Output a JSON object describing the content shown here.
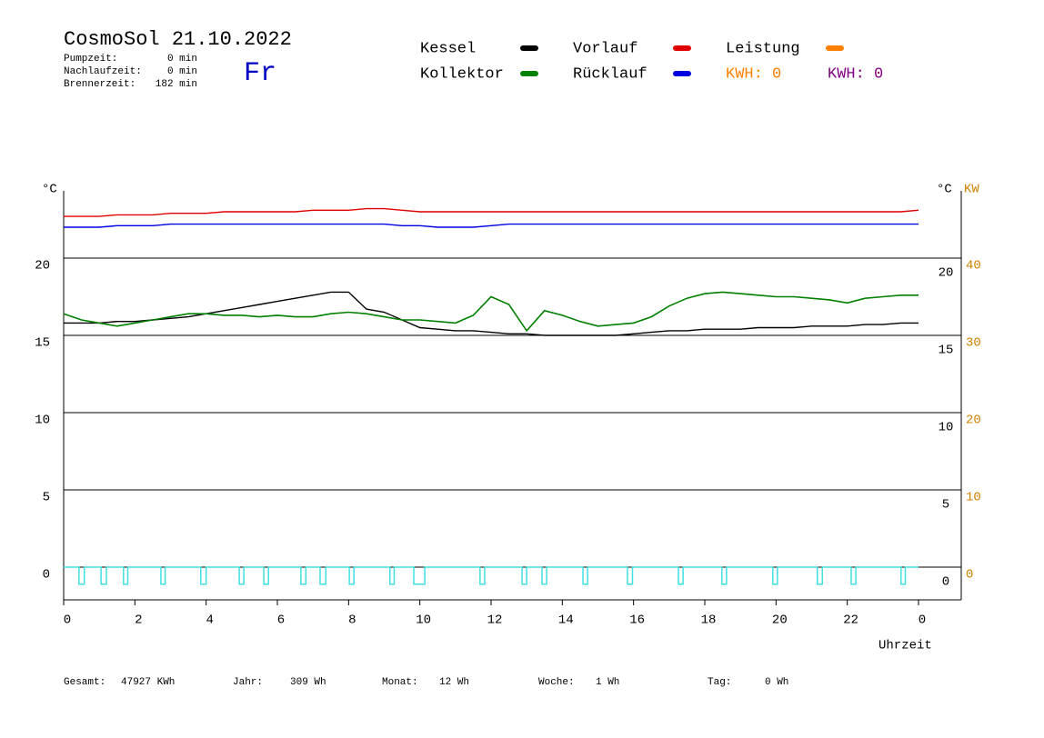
{
  "chart_data": {
    "type": "line",
    "title": "CosmoSol 21.10.2022",
    "day": "Fr",
    "stats": [
      {
        "label": "Pumpzeit:",
        "value": "0 min"
      },
      {
        "label": "Nachlaufzeit:",
        "value": "0 min"
      },
      {
        "label": "Brennerzeit:",
        "value": "182 min"
      }
    ],
    "x": [
      0,
      0.5,
      1,
      1.5,
      2,
      2.5,
      3,
      3.5,
      4,
      4.5,
      5,
      5.5,
      6,
      6.5,
      7,
      7.5,
      8,
      8.5,
      9,
      9.5,
      10,
      10.5,
      11,
      11.5,
      12,
      12.5,
      13,
      13.5,
      14,
      14.5,
      15,
      15.5,
      16,
      16.5,
      17,
      17.5,
      18,
      18.5,
      19,
      19.5,
      20,
      20.5,
      21,
      21.5,
      22,
      22.5,
      23,
      23.5,
      24
    ],
    "series": [
      {
        "name": "Kessel",
        "color": "#000000",
        "values": [
          15.8,
          15.8,
          15.8,
          15.9,
          15.9,
          16.0,
          16.1,
          16.2,
          16.4,
          16.6,
          16.8,
          17.0,
          17.2,
          17.4,
          17.6,
          17.8,
          17.8,
          16.7,
          16.5,
          16.0,
          15.5,
          15.4,
          15.3,
          15.3,
          15.2,
          15.1,
          15.1,
          15.0,
          15.0,
          15.0,
          15.0,
          15.0,
          15.1,
          15.2,
          15.3,
          15.3,
          15.4,
          15.4,
          15.4,
          15.5,
          15.5,
          15.5,
          15.6,
          15.6,
          15.6,
          15.7,
          15.7,
          15.8,
          15.8
        ]
      },
      {
        "name": "Kollektor",
        "color": "#008000",
        "values": [
          16.4,
          16.0,
          15.8,
          15.6,
          15.8,
          16.0,
          16.2,
          16.4,
          16.4,
          16.3,
          16.3,
          16.2,
          16.3,
          16.2,
          16.2,
          16.4,
          16.5,
          16.4,
          16.2,
          16.0,
          16.0,
          15.9,
          15.8,
          16.3,
          17.5,
          17.0,
          15.3,
          16.6,
          16.3,
          15.9,
          15.6,
          15.7,
          15.8,
          16.2,
          16.9,
          17.4,
          17.7,
          17.8,
          17.7,
          17.6,
          17.5,
          17.5,
          17.4,
          17.3,
          17.1,
          17.4,
          17.5,
          17.6,
          17.6
        ]
      },
      {
        "name": "Vorlauf",
        "color": "#e00000",
        "values": [
          22.7,
          22.7,
          22.7,
          22.8,
          22.8,
          22.8,
          22.9,
          22.9,
          22.9,
          23.0,
          23.0,
          23.0,
          23.0,
          23.0,
          23.1,
          23.1,
          23.1,
          23.2,
          23.2,
          23.1,
          23.0,
          23.0,
          23.0,
          23.0,
          23.0,
          23.0,
          23.0,
          23.0,
          23.0,
          23.0,
          23.0,
          23.0,
          23.0,
          23.0,
          23.0,
          23.0,
          23.0,
          23.0,
          23.0,
          23.0,
          23.0,
          23.0,
          23.0,
          23.0,
          23.0,
          23.0,
          23.0,
          23.0,
          23.1
        ]
      },
      {
        "name": "Rücklauf",
        "color": "#0000e0",
        "values": [
          22.0,
          22.0,
          22.0,
          22.1,
          22.1,
          22.1,
          22.2,
          22.2,
          22.2,
          22.2,
          22.2,
          22.2,
          22.2,
          22.2,
          22.2,
          22.2,
          22.2,
          22.2,
          22.2,
          22.1,
          22.1,
          22.0,
          22.0,
          22.0,
          22.1,
          22.2,
          22.2,
          22.2,
          22.2,
          22.2,
          22.2,
          22.2,
          22.2,
          22.2,
          22.2,
          22.2,
          22.2,
          22.2,
          22.2,
          22.2,
          22.2,
          22.2,
          22.2,
          22.2,
          22.2,
          22.2,
          22.2,
          22.2,
          22.2
        ]
      }
    ],
    "legend_extra": [
      {
        "name": "Leistung",
        "color": "#ff8000"
      }
    ],
    "kwh": [
      {
        "text": "KWH: 0",
        "color": "#ff8000"
      },
      {
        "text": "KWH: 0",
        "color": "#800080"
      }
    ],
    "pulses": [
      [
        0.43,
        0.58
      ],
      [
        1.05,
        1.2
      ],
      [
        1.68,
        1.8
      ],
      [
        2.73,
        2.85
      ],
      [
        3.85,
        4.0
      ],
      [
        4.93,
        5.06
      ],
      [
        5.62,
        5.75
      ],
      [
        6.66,
        6.8
      ],
      [
        7.2,
        7.36
      ],
      [
        8.02,
        8.15
      ],
      [
        9.16,
        9.28
      ],
      [
        9.83,
        10.14
      ],
      [
        11.69,
        11.82
      ],
      [
        12.87,
        13.0
      ],
      [
        13.43,
        13.56
      ],
      [
        14.58,
        14.71
      ],
      [
        15.83,
        15.97
      ],
      [
        17.26,
        17.39
      ],
      [
        18.48,
        18.61
      ],
      [
        19.91,
        20.04
      ],
      [
        21.16,
        21.3
      ],
      [
        22.11,
        22.24
      ],
      [
        23.51,
        23.63
      ]
    ],
    "pulse_low": -1.1,
    "pulse_color": "#40e0e0",
    "xlim": [
      0,
      25.2
    ],
    "xticks": [
      0,
      2,
      4,
      6,
      8,
      10,
      12,
      14,
      16,
      18,
      20,
      22,
      {
        "value": 24,
        "label": "0"
      }
    ],
    "xlabel": "Uhrzeit",
    "ylim": [
      -2,
      24.5
    ],
    "yticks": [
      0,
      5,
      10,
      15,
      20
    ],
    "ylabel": "°C",
    "y2lim": [
      -4,
      49
    ],
    "y2ticks": [
      0,
      10,
      20,
      30,
      40
    ],
    "y2label": "°C",
    "y3label": "KW",
    "y2color": "#d08000",
    "grid": true,
    "footer": [
      {
        "label": "Gesamt:",
        "value": "47927 KWh"
      },
      {
        "label": "Jahr:",
        "value": "309 Wh"
      },
      {
        "label": "Monat:",
        "value": "12 Wh"
      },
      {
        "label": "Woche:",
        "value": "1 Wh"
      },
      {
        "label": "Tag:",
        "value": "0 Wh"
      }
    ]
  }
}
